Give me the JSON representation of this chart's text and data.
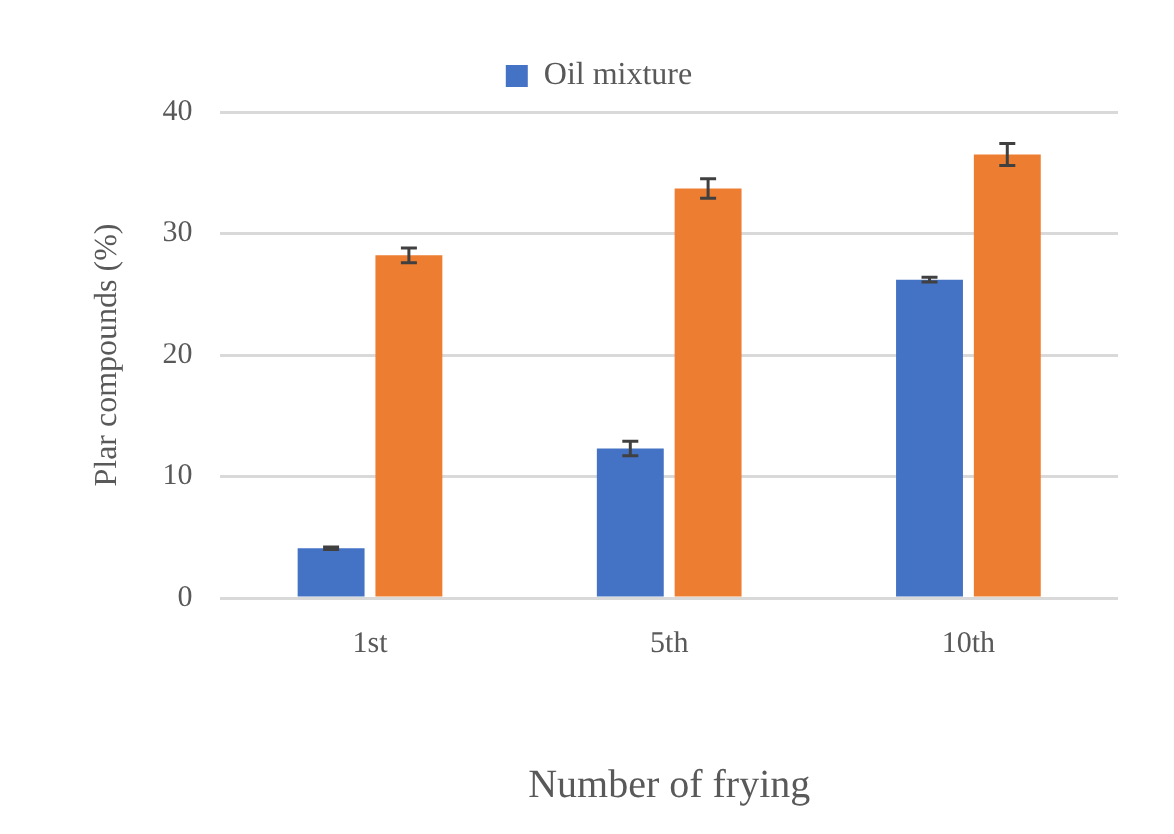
{
  "chart_data": {
    "type": "bar",
    "xlabel": "Number of frying",
    "ylabel": "Plar compounds (%)",
    "categories": [
      "1st",
      "5th",
      "10th"
    ],
    "series": [
      {
        "name": "Oil mixture",
        "color": "#4472c4",
        "values": [
          4.1,
          12.3,
          26.2
        ],
        "errors": [
          0.1,
          0.6,
          0.2
        ]
      },
      {
        "color": "#ed7d31",
        "values": [
          28.2,
          33.7,
          36.5
        ],
        "errors": [
          0.6,
          0.8,
          0.9
        ]
      }
    ],
    "ylim": [
      0,
      40
    ],
    "yticks": [
      0,
      10,
      20,
      30,
      40
    ],
    "grid": "y",
    "legend": "top"
  }
}
